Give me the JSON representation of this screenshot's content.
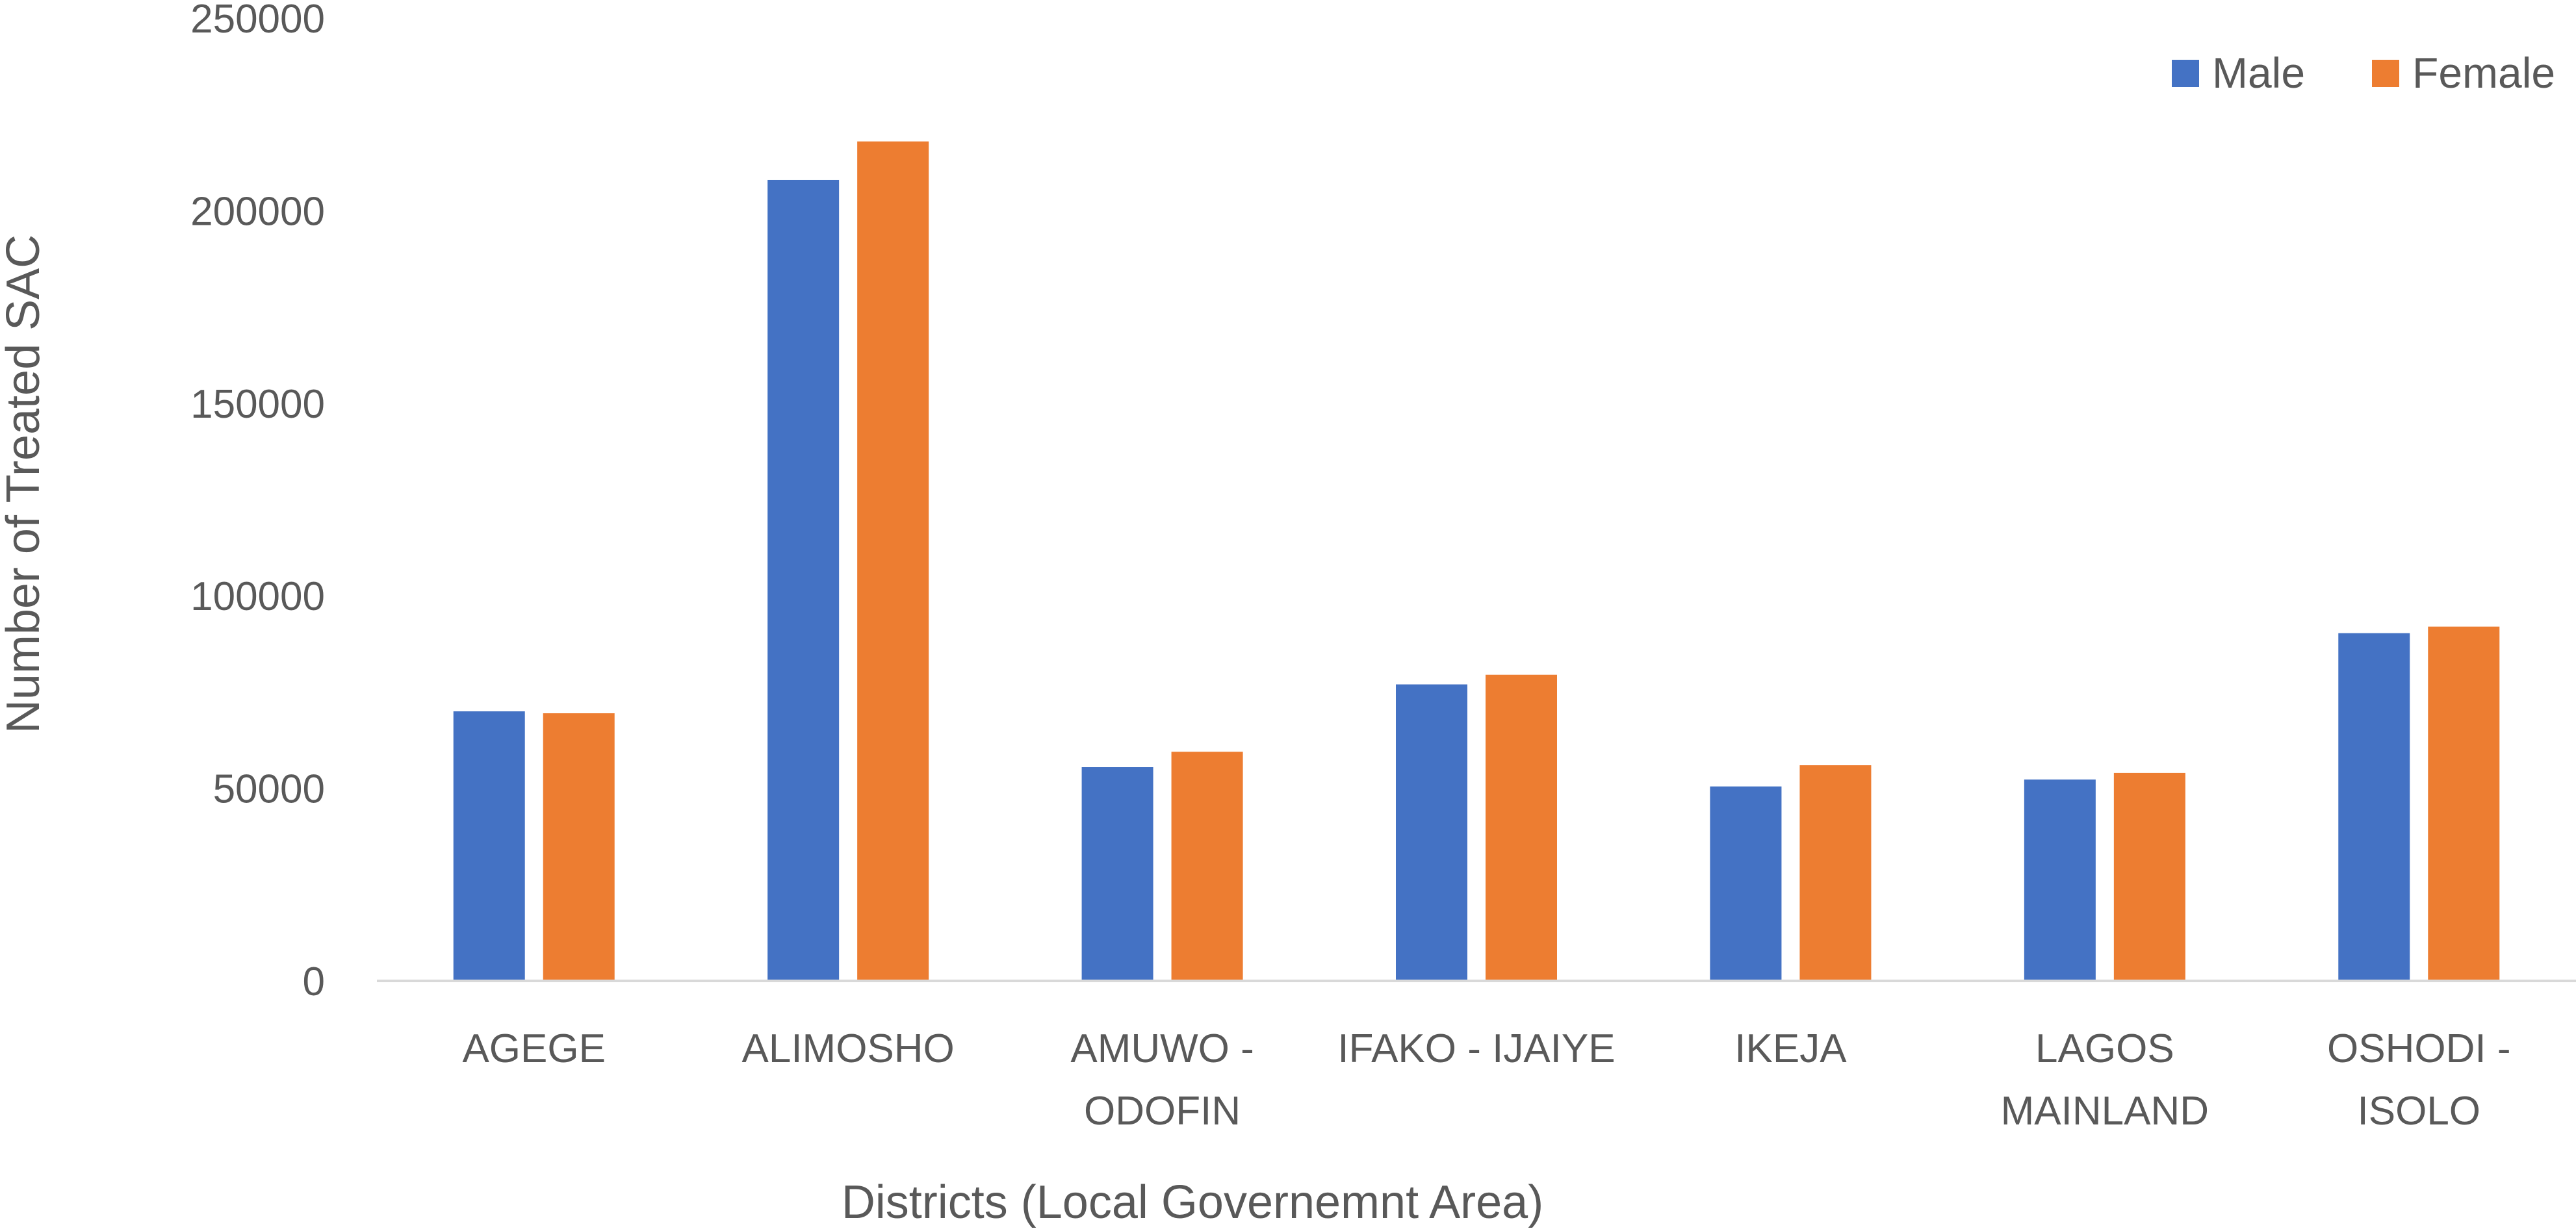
{
  "chart_data": {
    "type": "bar",
    "title": "",
    "xlabel": "Districts (Local Governemnt Area)",
    "ylabel": "Number of Treated SAC",
    "ylim": [
      0,
      250000
    ],
    "yticks": [
      0,
      50000,
      100000,
      150000,
      200000,
      250000
    ],
    "grid": false,
    "legend_position": "top-right",
    "categories": [
      [
        "AGEGE"
      ],
      [
        "ALIMOSHO"
      ],
      [
        "AMUWO -",
        "ODOFIN"
      ],
      [
        "IFAKO - IJAIYE"
      ],
      [
        "IKEJA"
      ],
      [
        "LAGOS",
        "MAINLAND"
      ],
      [
        "OSHODI -",
        "ISOLO"
      ]
    ],
    "series": [
      {
        "name": "Male",
        "color": "#4472C4",
        "values": [
          70000,
          208000,
          55500,
          77000,
          50500,
          52300,
          90300
        ]
      },
      {
        "name": "Female",
        "color": "#ED7D31",
        "values": [
          69500,
          218000,
          59500,
          79500,
          56000,
          54000,
          92000
        ]
      }
    ]
  }
}
